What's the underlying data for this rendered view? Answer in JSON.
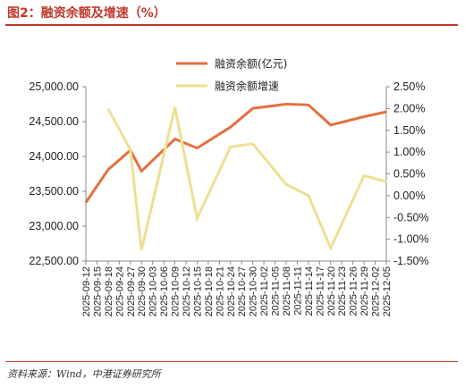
{
  "figure": {
    "title": "图2：融资余额及增速（%）",
    "source": "资料来源：Wind，中港证券研究所"
  },
  "colors": {
    "accent": "#c0392b",
    "balance_line": "#e3703e",
    "growth_line": "#ede092",
    "axis": "#888888"
  },
  "chart_data": {
    "type": "line",
    "categories": [
      "2025-09-12",
      "2025-09-15",
      "2025-09-18",
      "2025-09-24",
      "2025-09-27",
      "2025-09-30",
      "2025-10-03",
      "2025-10-06",
      "2025-10-09",
      "2025-10-12",
      "2025-10-15",
      "2025-10-18",
      "2025-10-21",
      "2025-10-24",
      "2025-10-27",
      "2025-10-30",
      "2025-11-02",
      "2025-11-05",
      "2025-11-08",
      "2025-11-11",
      "2025-11-14",
      "2025-11-17",
      "2025-11-20",
      "2025-11-23",
      "2025-11-26",
      "2025-11-29",
      "2025-12-02",
      "2025-12-05"
    ],
    "x_tick_labels": [
      "2025-09-12",
      "2025-09-15",
      "2025-09-18",
      "2025-09-24",
      "2025-09-27",
      "2025-09-30",
      "2025-10-03",
      "2025-10-06",
      "2025-10-09",
      "2025-10-12",
      "2025-10-15",
      "2025-10-18",
      "2025-10-21",
      "2025-10-24",
      "2025-10-27",
      "2025-10-30",
      "2025-11-02",
      "2025-11-05",
      "2025-11-08",
      "2025-11-11",
      "2025-11-14",
      "2025-11-17",
      "2025-11-20",
      "2025-11-23",
      "2025-11-26",
      "2025-11-29",
      "2025-12-02",
      "2025-12-05"
    ],
    "series": [
      {
        "name": "融资余额(亿元)",
        "axis": "left",
        "color": "#e3703e",
        "points": [
          {
            "x": "2025-09-12",
            "y": 23340
          },
          {
            "x": "2025-09-18",
            "y": 23810
          },
          {
            "x": "2025-09-27",
            "y": 24090
          },
          {
            "x": "2025-09-30",
            "y": 23790
          },
          {
            "x": "2025-10-09",
            "y": 24250
          },
          {
            "x": "2025-10-15",
            "y": 24120
          },
          {
            "x": "2025-10-24",
            "y": 24420
          },
          {
            "x": "2025-10-30",
            "y": 24690
          },
          {
            "x": "2025-11-08",
            "y": 24750
          },
          {
            "x": "2025-11-14",
            "y": 24740
          },
          {
            "x": "2025-11-20",
            "y": 24450
          },
          {
            "x": "2025-11-29",
            "y": 24570
          },
          {
            "x": "2025-12-05",
            "y": 24640
          }
        ]
      },
      {
        "name": "融资余额增速",
        "axis": "right",
        "color": "#ede092",
        "points": [
          {
            "x": "2025-09-18",
            "y": 1.99
          },
          {
            "x": "2025-09-27",
            "y": 1.06
          },
          {
            "x": "2025-09-30",
            "y": -1.25
          },
          {
            "x": "2025-10-09",
            "y": 2.03
          },
          {
            "x": "2025-10-15",
            "y": -0.52
          },
          {
            "x": "2025-10-24",
            "y": 1.12
          },
          {
            "x": "2025-10-30",
            "y": 1.19
          },
          {
            "x": "2025-11-08",
            "y": 0.26
          },
          {
            "x": "2025-11-14",
            "y": 0.0
          },
          {
            "x": "2025-11-20",
            "y": -1.2
          },
          {
            "x": "2025-11-29",
            "y": 0.46
          },
          {
            "x": "2025-12-05",
            "y": 0.32
          }
        ]
      }
    ],
    "y_left": {
      "ylim": [
        22500,
        25000
      ],
      "ticks": [
        22500,
        23000,
        23500,
        24000,
        24500,
        25000
      ],
      "tick_labels": [
        "22,500.00",
        "23,000.00",
        "23,500.00",
        "24,000.00",
        "24,500.00",
        "25,000.00"
      ]
    },
    "y_right": {
      "ylim": [
        -1.5,
        2.5
      ],
      "ticks": [
        -1.5,
        -1.0,
        -0.5,
        0.0,
        0.5,
        1.0,
        1.5,
        2.0,
        2.5
      ],
      "tick_labels": [
        "-1.50%",
        "-1.00%",
        "-0.50%",
        "0.00%",
        "0.50%",
        "1.00%",
        "1.50%",
        "2.00%",
        "2.50%"
      ]
    },
    "grid": false,
    "legend_position": "top-center"
  }
}
